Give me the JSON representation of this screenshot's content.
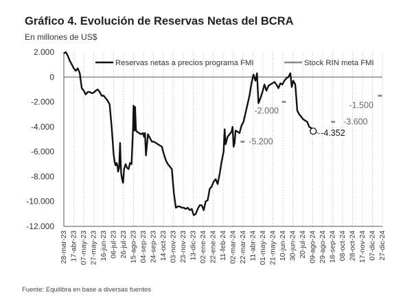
{
  "title": "Gráfico 4. Evolución de Reservas Netas del BCRA",
  "subtitle": "En millones de US$",
  "source": "Fuente: Equilibra en base a diversas fuentes",
  "chart_data": {
    "type": "line",
    "ylim": [
      -12000,
      2000
    ],
    "yticks": [
      2000,
      0,
      -2000,
      -4000,
      -6000,
      -8000,
      -10000,
      -12000
    ],
    "ytick_labels": [
      "2.000",
      "0",
      "-2.000",
      "-4.000",
      "-6.000",
      "-8.000",
      "-10.000",
      "-12.000"
    ],
    "xticks": [
      "28-mar-23",
      "17-abr-23",
      "07-may-23",
      "27-may-23",
      "16-jun-23",
      "06-jul-23",
      "26-jul-23",
      "15-ago-23",
      "04-sep-23",
      "24-sep-23",
      "14-oct-23",
      "03-nov-23",
      "23-nov-23",
      "13-dic-23",
      "02-ene-24",
      "22-ene-24",
      "11-feb-24",
      "02-mar-24",
      "22-mar-24",
      "11-abr-24",
      "01-may-24",
      "21-may-24",
      "10-jun-24",
      "30-jun-24",
      "20-jul-24",
      "09-ago-24",
      "29-ago-24",
      "18-sep-24",
      "08-oct-24",
      "28-oct-24",
      "17-nov-24",
      "07-dic-24",
      "27-dic-24"
    ],
    "grid": "vertical dashed",
    "legend_position": "top",
    "series": [
      {
        "name": "Reservas netas a precios programa FMI",
        "color": "#111111",
        "x": [
          "2023-03-28",
          "2023-04-01",
          "2023-04-05",
          "2023-04-09",
          "2023-04-13",
          "2023-04-17",
          "2023-04-21",
          "2023-04-25",
          "2023-04-29",
          "2023-05-03",
          "2023-05-07",
          "2023-05-11",
          "2023-05-15",
          "2023-05-19",
          "2023-05-23",
          "2023-05-27",
          "2023-05-31",
          "2023-06-04",
          "2023-06-08",
          "2023-06-12",
          "2023-06-16",
          "2023-06-20",
          "2023-06-24",
          "2023-06-28",
          "2023-07-02",
          "2023-07-06",
          "2023-07-08",
          "2023-07-10",
          "2023-07-12",
          "2023-07-14",
          "2023-07-15",
          "2023-07-17",
          "2023-07-19",
          "2023-07-21",
          "2023-07-23",
          "2023-07-25",
          "2023-07-27",
          "2023-07-30",
          "2023-08-02",
          "2023-08-05",
          "2023-08-08",
          "2023-08-11",
          "2023-08-14",
          "2023-08-15",
          "2023-08-17",
          "2023-08-18",
          "2023-08-20",
          "2023-08-22",
          "2023-08-26",
          "2023-08-30",
          "2023-09-03",
          "2023-09-05",
          "2023-09-07",
          "2023-09-09",
          "2023-09-13",
          "2023-09-17",
          "2023-09-21",
          "2023-09-25",
          "2023-09-29",
          "2023-10-03",
          "2023-10-07",
          "2023-10-11",
          "2023-10-15",
          "2023-10-19",
          "2023-10-23",
          "2023-10-27",
          "2023-10-31",
          "2023-11-04",
          "2023-11-08",
          "2023-11-12",
          "2023-11-16",
          "2023-11-20",
          "2023-11-24",
          "2023-11-28",
          "2023-12-02",
          "2023-12-06",
          "2023-12-10",
          "2023-12-14",
          "2023-12-18",
          "2023-12-22",
          "2023-12-26",
          "2023-12-30",
          "2024-01-03",
          "2024-01-07",
          "2024-01-11",
          "2024-01-15",
          "2024-01-19",
          "2024-01-23",
          "2024-01-27",
          "2024-01-31",
          "2024-02-04",
          "2024-02-08",
          "2024-02-12",
          "2024-02-14",
          "2024-02-16",
          "2024-02-20",
          "2024-02-24",
          "2024-02-28",
          "2024-03-01",
          "2024-03-03",
          "2024-03-05",
          "2024-03-07",
          "2024-03-11",
          "2024-03-15",
          "2024-03-19",
          "2024-03-23",
          "2024-03-27",
          "2024-03-31",
          "2024-04-04",
          "2024-04-08",
          "2024-04-12",
          "2024-04-16",
          "2024-04-19",
          "2024-04-22",
          "2024-04-26",
          "2024-04-30",
          "2024-05-04",
          "2024-05-08",
          "2024-05-12",
          "2024-05-16",
          "2024-05-20",
          "2024-05-24",
          "2024-05-28",
          "2024-06-01",
          "2024-06-05",
          "2024-06-09",
          "2024-06-13",
          "2024-06-17",
          "2024-06-21",
          "2024-06-25",
          "2024-06-28",
          "2024-07-01",
          "2024-07-05",
          "2024-07-09",
          "2024-07-13",
          "2024-07-17",
          "2024-07-21",
          "2024-07-25",
          "2024-07-29",
          "2024-08-02",
          "2024-08-06",
          "2024-08-10"
        ],
        "values": [
          1900,
          2000,
          1700,
          1300,
          1000,
          700,
          500,
          700,
          300,
          -900,
          -1100,
          -1400,
          -1200,
          -1200,
          -1300,
          -1250,
          -1100,
          -1000,
          -1200,
          -1500,
          -1500,
          -1700,
          -1900,
          -2200,
          -4000,
          -6200,
          -6800,
          -7100,
          -6900,
          -7200,
          -7600,
          -7300,
          -5300,
          -7700,
          -8200,
          -8500,
          -7400,
          -7000,
          -7300,
          -7400,
          -6900,
          -7000,
          -4100,
          -2300,
          -4300,
          -2400,
          -4300,
          -4400,
          -4500,
          -4600,
          -4500,
          -4800,
          -4500,
          -6300,
          -4600,
          -4900,
          -5200,
          -5200,
          -5300,
          -5400,
          -5500,
          -5600,
          -6200,
          -6700,
          -7000,
          -7200,
          -7400,
          -9300,
          -10500,
          -10400,
          -10400,
          -10500,
          -10500,
          -10600,
          -10500,
          -10700,
          -10600,
          -11100,
          -11000,
          -10600,
          -10300,
          -10300,
          -10700,
          -10000,
          -9900,
          -9000,
          -8800,
          -8400,
          -8200,
          -8600,
          -7800,
          -6800,
          -6000,
          -4200,
          -5400,
          -4800,
          -4600,
          -4400,
          -4000,
          -5600,
          -5300,
          -4300,
          -4400,
          -4500,
          -3900,
          -3600,
          -2900,
          -2200,
          -1500,
          -500,
          200,
          -300,
          300,
          -2100,
          -1700,
          -1200,
          -600,
          -1100,
          -700,
          -600,
          -500,
          -400,
          -600,
          -900,
          -500,
          -600,
          -300,
          -100,
          0,
          300,
          -800,
          -300,
          -600,
          -2700,
          -3000,
          -3200,
          -3400,
          -3500,
          -3600,
          -4000,
          -4100,
          -4352
        ]
      },
      {
        "name": "Stock RIN meta FMI",
        "color": "#888888",
        "segments": [
          {
            "x0": "2024-03-17",
            "x1": "2024-03-25",
            "value": -5200,
            "label": "-5.200"
          },
          {
            "x0": "2024-06-08",
            "x1": "2024-06-16",
            "value": -2000,
            "label": "-2.000"
          },
          {
            "x0": "2024-09-15",
            "x1": "2024-09-23",
            "value": -3600,
            "label": "-3.600"
          },
          {
            "x0": "2024-12-18",
            "x1": "2024-12-26",
            "value": -1500,
            "label": "-1.500"
          }
        ]
      }
    ],
    "endpoint": {
      "x": "2024-08-10",
      "value": -4352,
      "label": "-4.352"
    }
  }
}
